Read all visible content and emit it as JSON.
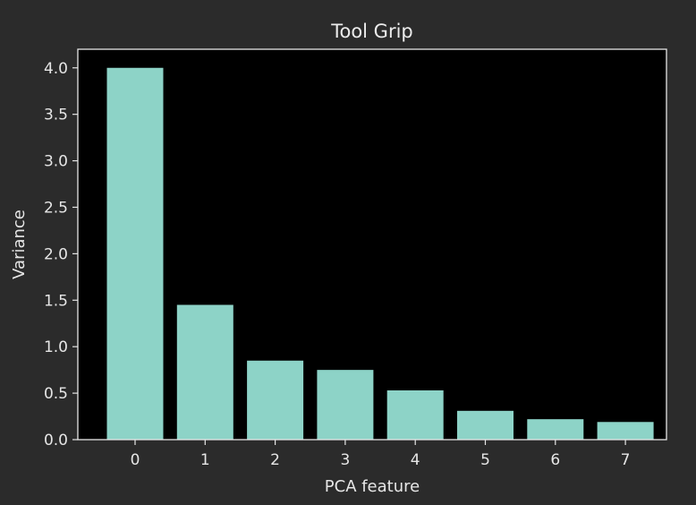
{
  "chart_data": {
    "type": "bar",
    "title": "Tool Grip",
    "xlabel": "PCA feature",
    "ylabel": "Variance",
    "categories": [
      "0",
      "1",
      "2",
      "3",
      "4",
      "5",
      "6",
      "7"
    ],
    "values": [
      4.0,
      1.45,
      0.85,
      0.75,
      0.53,
      0.31,
      0.22,
      0.19
    ],
    "ylim": [
      0,
      4.2
    ],
    "yticks": [
      "0.0",
      "0.5",
      "1.0",
      "1.5",
      "2.0",
      "2.5",
      "3.0",
      "3.5",
      "4.0"
    ],
    "grid": false,
    "colors": {
      "figure_background": "#2b2b2b",
      "plot_background": "#000000",
      "bar": "#8dd3c7",
      "axes": "#e6e6e6",
      "text": "#e6e6e6"
    }
  }
}
